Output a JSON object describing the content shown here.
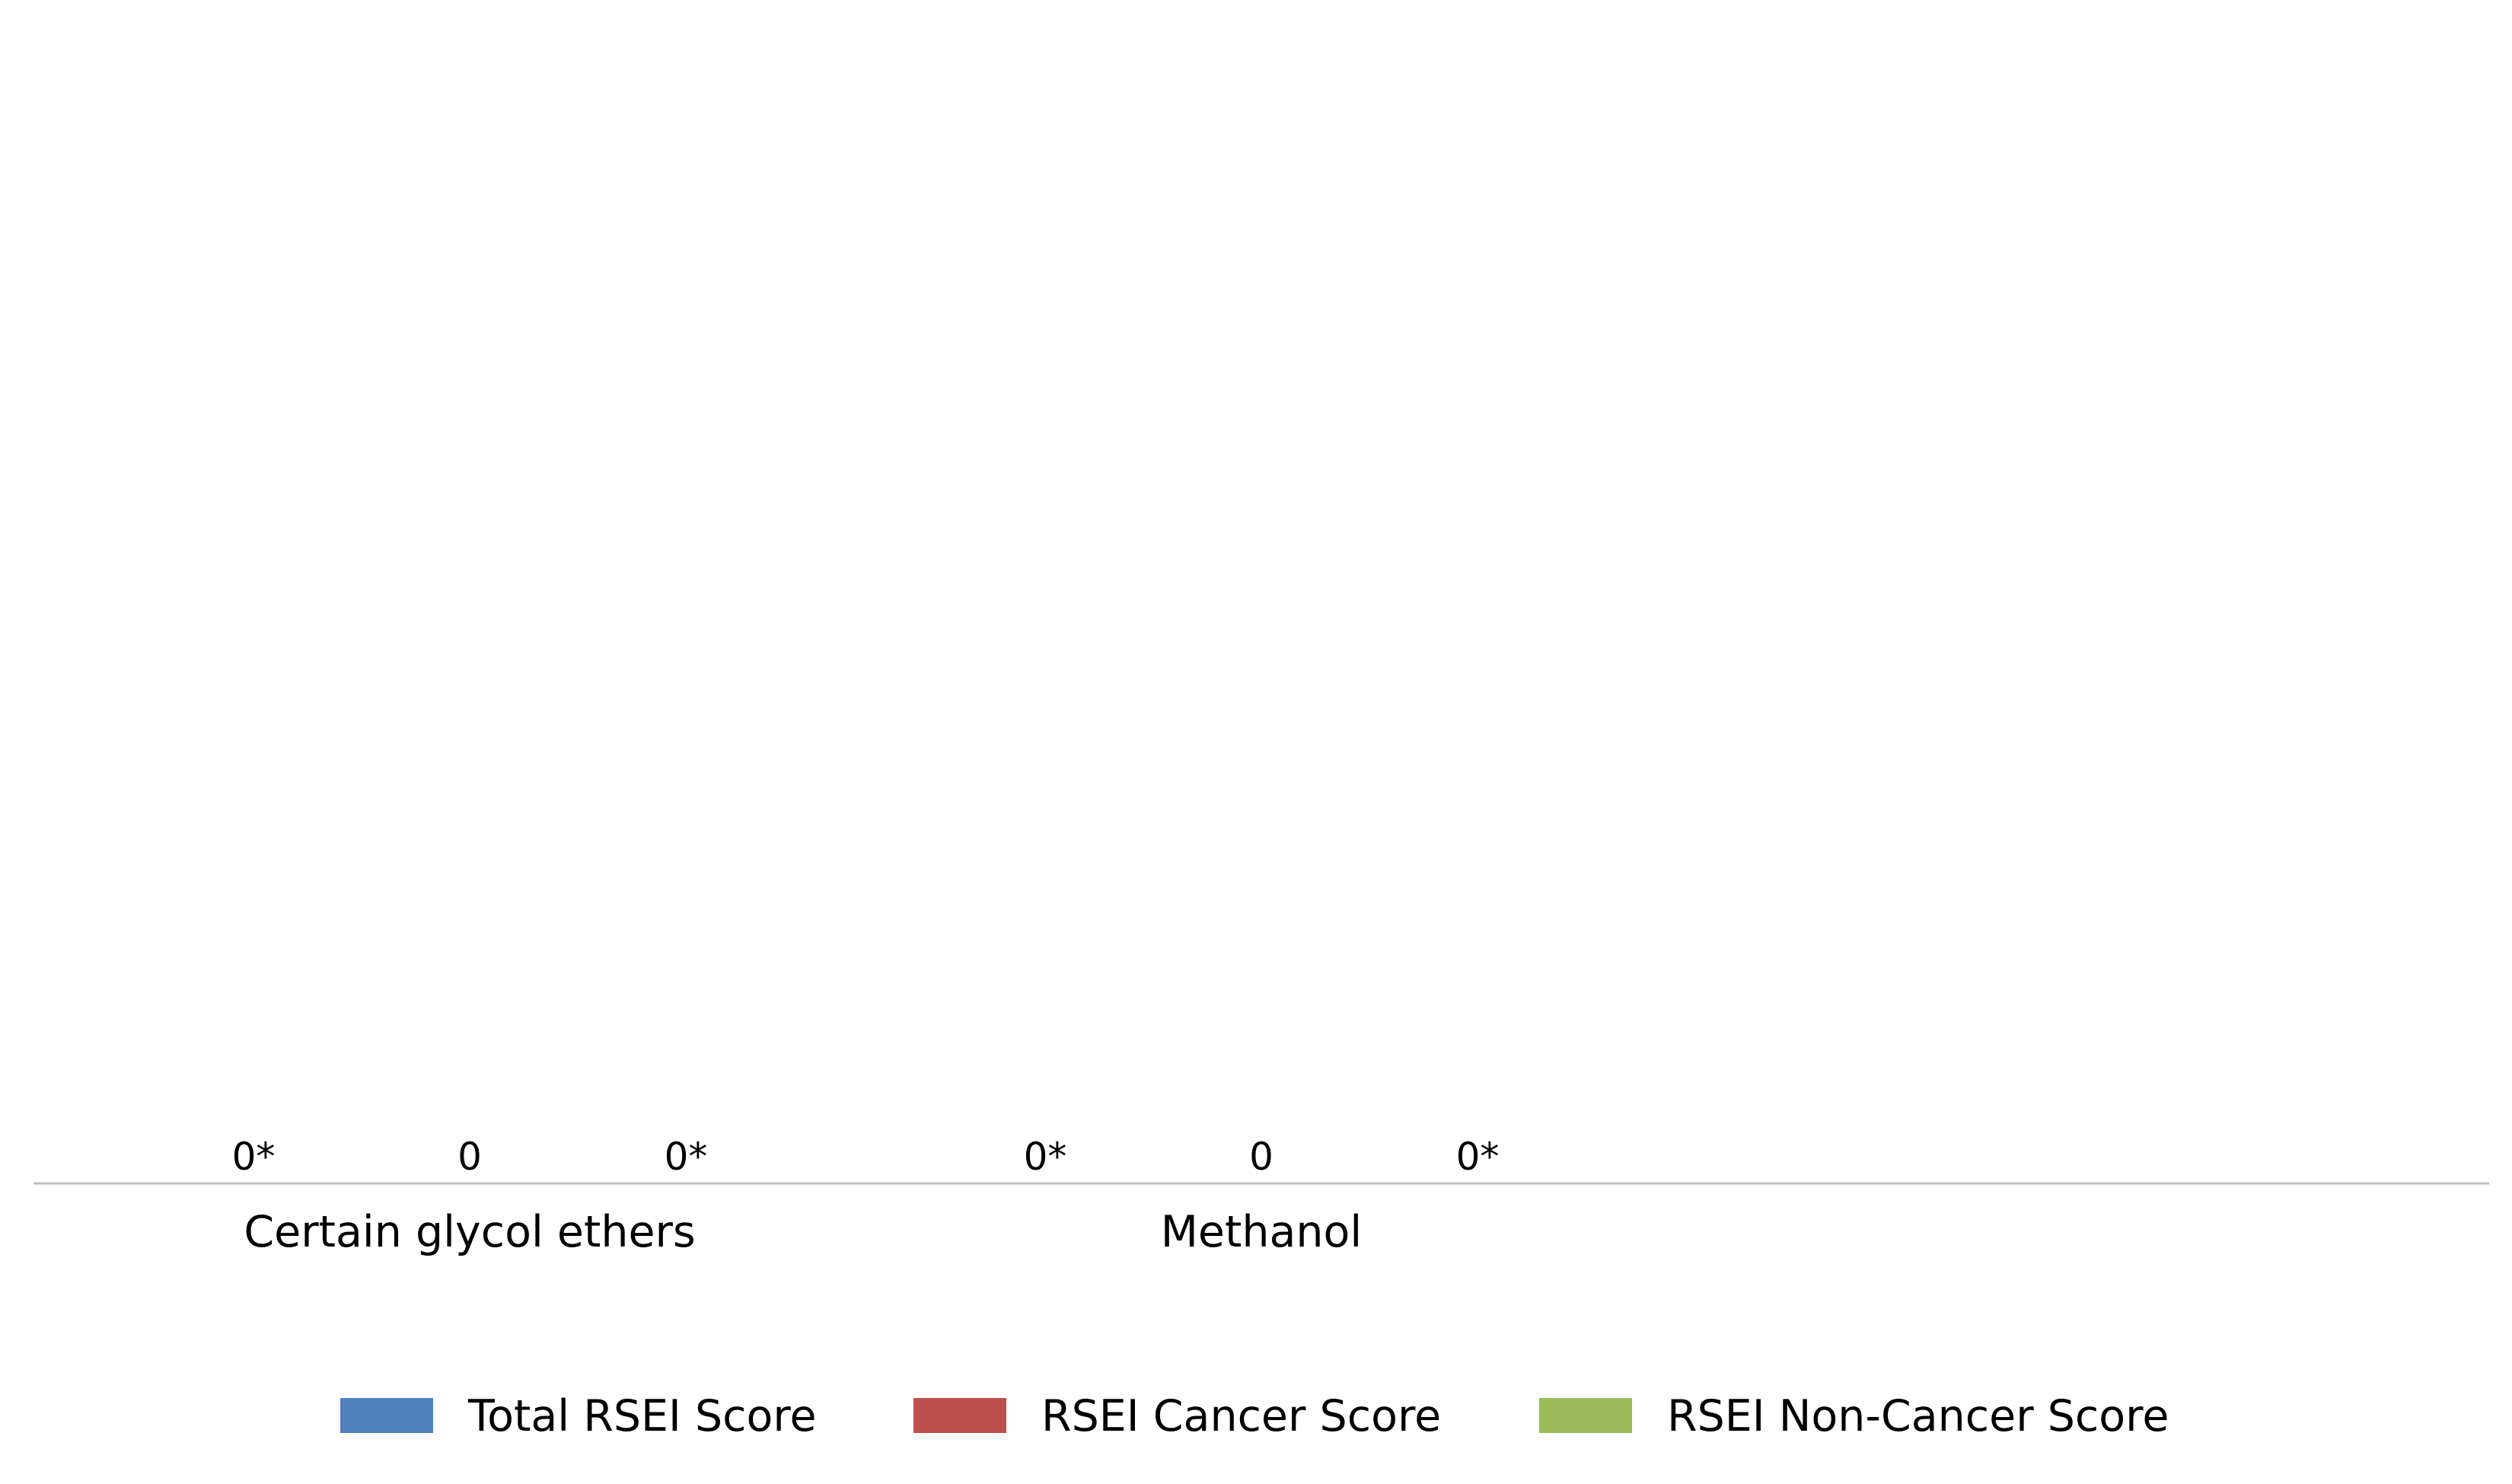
{
  "chart_data": {
    "type": "bar",
    "title": "",
    "xlabel": "",
    "ylabel": "",
    "categories": [
      "Certain glycol ethers",
      "Methanol"
    ],
    "series": [
      {
        "name": "Total RSEI Score",
        "color": "#4F81BD",
        "values": [
          0,
          0
        ],
        "data_labels": [
          "0*",
          "0*"
        ]
      },
      {
        "name": "RSEI Cancer Score",
        "color": "#C0504D",
        "values": [
          0,
          0
        ],
        "data_labels": [
          "0",
          "0"
        ]
      },
      {
        "name": "RSEI Non-Cancer Score",
        "color": "#9BBB59",
        "values": [
          0,
          0
        ],
        "data_labels": [
          "0*",
          "0*"
        ]
      }
    ],
    "y_axis_visible": false,
    "grid": false,
    "legend_position": "bottom",
    "axis_line_color": "#BFBFBF"
  }
}
